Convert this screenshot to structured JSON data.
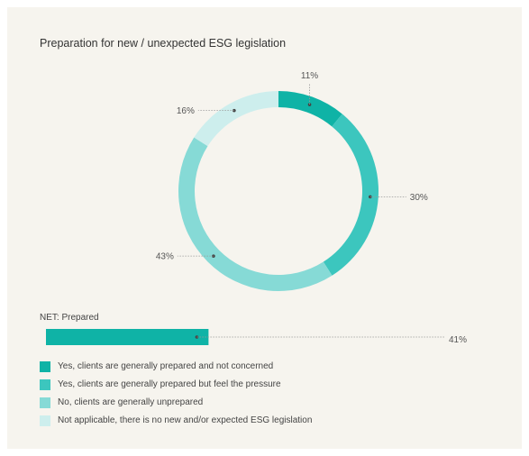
{
  "chart_data": {
    "type": "pie",
    "title": "Preparation for new / unexpected ESG legislation",
    "categories": [
      "Yes, clients are generally prepared and not concerned",
      "Yes, clients are generally prepared but feel the pressure",
      "No, clients are generally unprepared",
      "Not applicable, there is no new and/or expected ESG legislation"
    ],
    "values": [
      11,
      30,
      43,
      16
    ],
    "value_labels": [
      "11%",
      "30%",
      "43%",
      "16%"
    ],
    "colors": [
      "#0fb3a6",
      "#3cc6be",
      "#86dad6",
      "#cdeeed"
    ],
    "legend_position": "bottom-left",
    "net": {
      "label": "NET: Prepared",
      "value": 41,
      "value_label": "41%",
      "color": "#0fb3a6"
    }
  }
}
